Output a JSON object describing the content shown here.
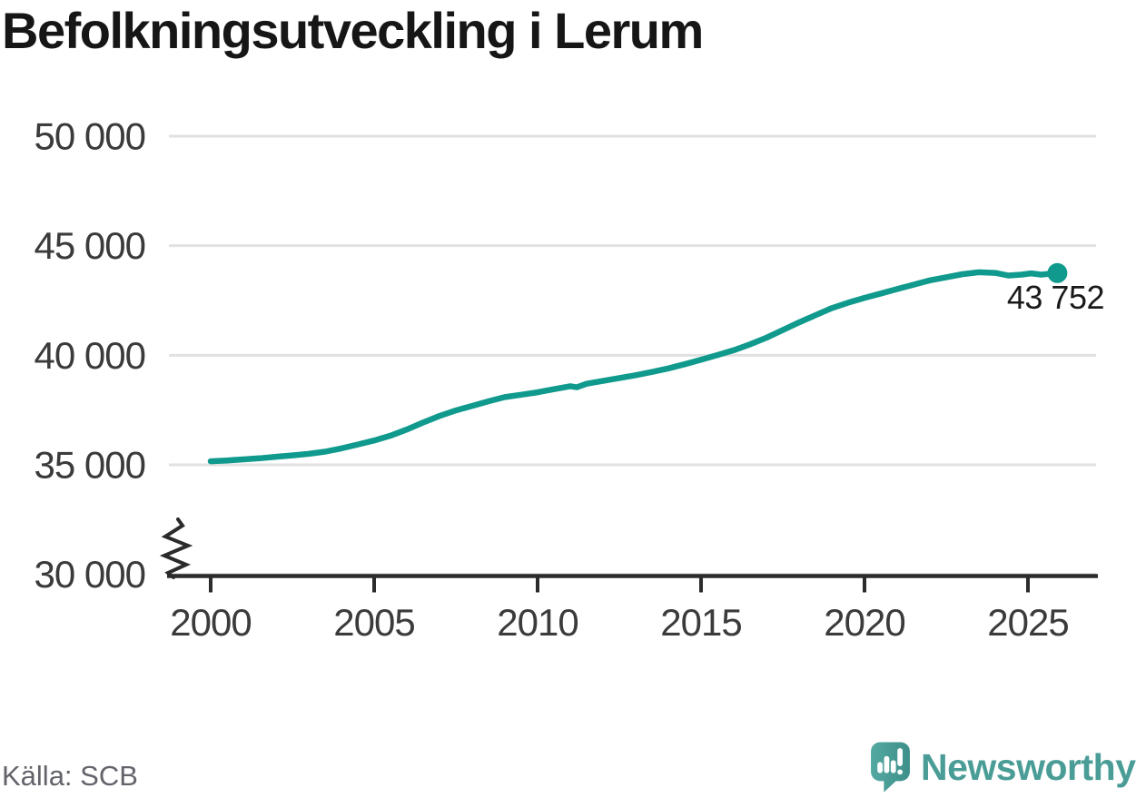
{
  "title": "Befolkningsutveckling i Lerum",
  "source": "Källa: SCB",
  "annotation": {
    "text": "43 752"
  },
  "logo": {
    "brand": "Newsworthy",
    "icon": "newsworthy-speech-bubble-bar-chart-icon"
  },
  "colors": {
    "line": "#0f9a8d",
    "grid": "#e1e1e1",
    "axis": "#2b2b2b",
    "tick_text": "#3b3b3b",
    "title_text": "#161616",
    "source_text": "#63636b",
    "brand_teal": "#4a9d96"
  },
  "chart_data": {
    "type": "line",
    "title": "Befolkningsutveckling i Lerum",
    "xlabel": "",
    "ylabel": "",
    "ylim": [
      30000,
      50000
    ],
    "y_axis_break": true,
    "grid": "horizontal",
    "legend": false,
    "x_ticks": [
      {
        "value": 2000,
        "label": "2000"
      },
      {
        "value": 2005,
        "label": "2005"
      },
      {
        "value": 2010,
        "label": "2010"
      },
      {
        "value": 2015,
        "label": "2015"
      },
      {
        "value": 2020,
        "label": "2020"
      },
      {
        "value": 2025,
        "label": "2025"
      }
    ],
    "y_ticks": [
      {
        "value": 30000,
        "label": "30 000"
      },
      {
        "value": 35000,
        "label": "35 000"
      },
      {
        "value": 40000,
        "label": "40 000"
      },
      {
        "value": 45000,
        "label": "45 000"
      },
      {
        "value": 50000,
        "label": "50 000"
      }
    ],
    "points": [
      [
        2000,
        35160
      ],
      [
        2000.5,
        35200
      ],
      [
        2001,
        35250
      ],
      [
        2001.5,
        35300
      ],
      [
        2002,
        35370
      ],
      [
        2002.5,
        35430
      ],
      [
        2003,
        35500
      ],
      [
        2003.5,
        35600
      ],
      [
        2004,
        35750
      ],
      [
        2004.5,
        35930
      ],
      [
        2005,
        36110
      ],
      [
        2005.5,
        36330
      ],
      [
        2006,
        36610
      ],
      [
        2006.5,
        36930
      ],
      [
        2007,
        37230
      ],
      [
        2007.5,
        37480
      ],
      [
        2008,
        37690
      ],
      [
        2008.5,
        37900
      ],
      [
        2009,
        38090
      ],
      [
        2009.5,
        38200
      ],
      [
        2010,
        38310
      ],
      [
        2010.5,
        38450
      ],
      [
        2011,
        38590
      ],
      [
        2011.2,
        38540
      ],
      [
        2011.5,
        38700
      ],
      [
        2012,
        38830
      ],
      [
        2012.5,
        38960
      ],
      [
        2013,
        39090
      ],
      [
        2013.5,
        39240
      ],
      [
        2014,
        39400
      ],
      [
        2014.5,
        39590
      ],
      [
        2015,
        39800
      ],
      [
        2015.5,
        40010
      ],
      [
        2016,
        40230
      ],
      [
        2016.5,
        40500
      ],
      [
        2017,
        40800
      ],
      [
        2017.5,
        41150
      ],
      [
        2018,
        41500
      ],
      [
        2018.5,
        41830
      ],
      [
        2019,
        42150
      ],
      [
        2019.5,
        42400
      ],
      [
        2020,
        42620
      ],
      [
        2020.5,
        42820
      ],
      [
        2021,
        43020
      ],
      [
        2021.5,
        43220
      ],
      [
        2022,
        43420
      ],
      [
        2022.5,
        43560
      ],
      [
        2023,
        43700
      ],
      [
        2023.5,
        43790
      ],
      [
        2024,
        43760
      ],
      [
        2024.4,
        43640
      ],
      [
        2024.8,
        43680
      ],
      [
        2025.1,
        43740
      ],
      [
        2025.4,
        43680
      ],
      [
        2025.65,
        43720
      ],
      [
        2025.9,
        43752
      ]
    ],
    "latest": {
      "x": 2025.9,
      "value": 43752,
      "label": "43 752"
    }
  }
}
